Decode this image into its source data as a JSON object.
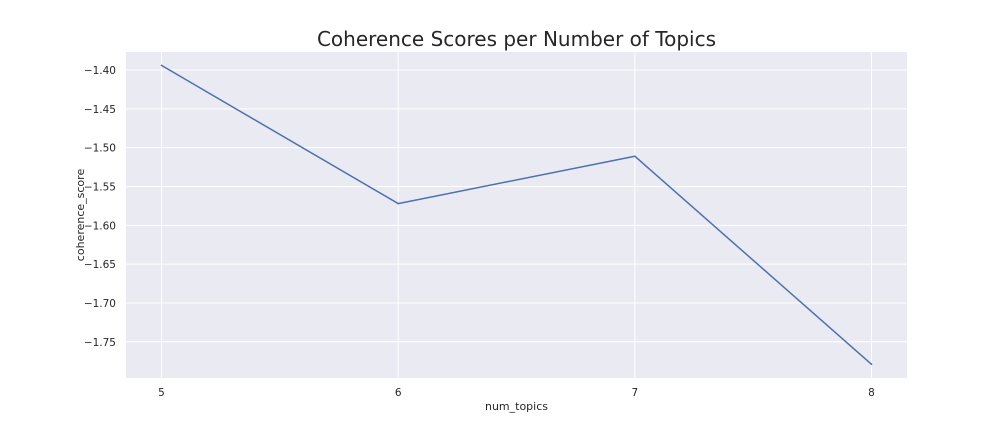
{
  "chart_data": {
    "type": "line",
    "title": "Coherence Scores per Number of Topics",
    "xlabel": "num_topics",
    "ylabel": "coherence_score",
    "x": [
      5,
      6,
      7,
      8
    ],
    "series": [
      {
        "values": [
          -1.394,
          -1.572,
          -1.511,
          -1.779
        ]
      }
    ],
    "xticks": [
      "5",
      "6",
      "7",
      "8"
    ],
    "yticks": [
      "−1.40",
      "−1.45",
      "−1.50",
      "−1.55",
      "−1.60",
      "−1.65",
      "−1.70",
      "−1.75"
    ],
    "ytick_values": [
      -1.4,
      -1.45,
      -1.5,
      -1.55,
      -1.6,
      -1.65,
      -1.7,
      -1.75
    ],
    "xlim": [
      4.85,
      8.15
    ],
    "ylim": [
      -1.7966,
      -1.3768
    ],
    "grid": true,
    "colors": {
      "plot_background": "#EAEAF2",
      "grid": "#FFFFFF",
      "line": "#4C72B0",
      "text": "#262626"
    }
  }
}
